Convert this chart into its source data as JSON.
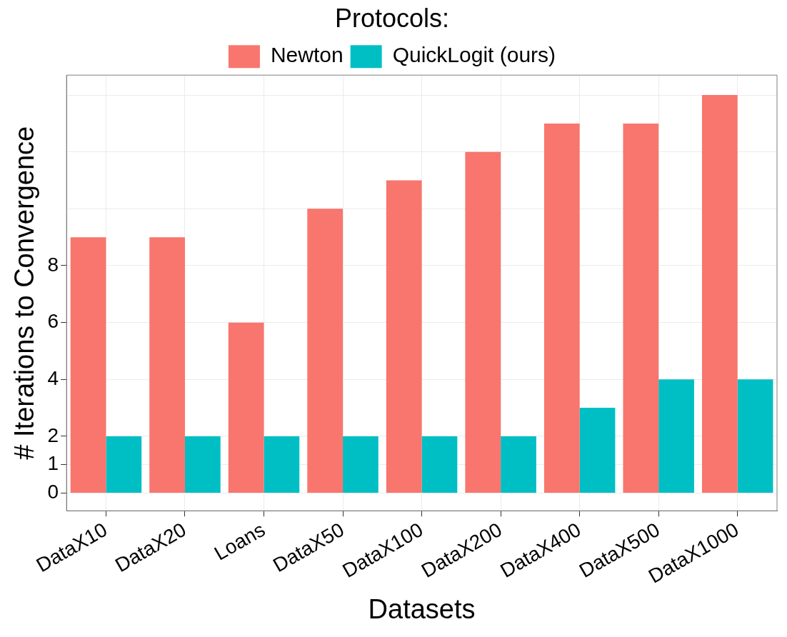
{
  "chart_data": {
    "type": "bar",
    "xlabel": "Datasets",
    "ylabel": "# Iterations to Convergence",
    "legend_title": "Protocols:",
    "legend": "top",
    "categories": [
      "DataX10",
      "DataX20",
      "Loans",
      "DataX50",
      "DataX100",
      "DataX200",
      "DataX400",
      "DataX500",
      "DataX1000"
    ],
    "series": [
      {
        "name": "Newton",
        "color": "#f8766d",
        "values": [
          9,
          9,
          6,
          10,
          11,
          12,
          13,
          13,
          14
        ]
      },
      {
        "name": "QuickLogit (ours)",
        "color": "#00bfc4",
        "values": [
          2,
          2,
          2,
          2,
          2,
          2,
          3,
          4,
          4
        ]
      }
    ],
    "ylim": [
      -0.62,
      14.7
    ],
    "yticks": [
      0,
      1,
      2,
      4,
      6,
      8,
      {
        "value": 10,
        "label": null
      },
      {
        "value": 12,
        "label": null
      },
      {
        "value": 14,
        "label": null
      }
    ],
    "grid": true
  }
}
